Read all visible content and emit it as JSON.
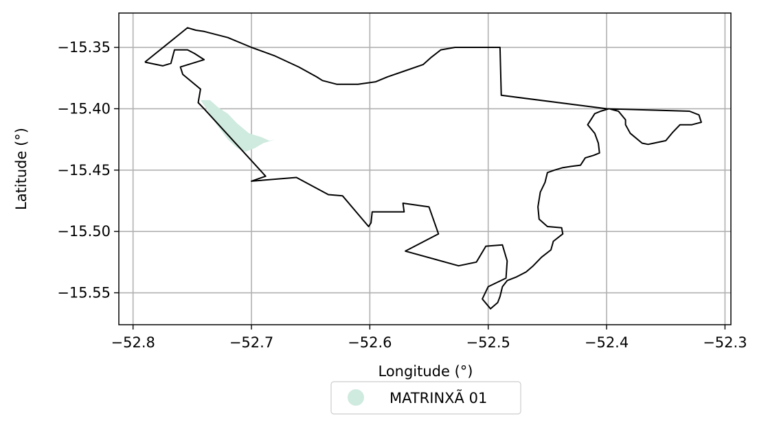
{
  "chart_data": {
    "type": "map",
    "xlabel": "Longitude (°)",
    "ylabel": "Latitude (°)",
    "xlim": [
      -52.812,
      -52.295
    ],
    "ylim": [
      -15.576,
      -15.322
    ],
    "xticks": [
      -52.8,
      -52.7,
      -52.6,
      -52.5,
      -52.4,
      -52.3
    ],
    "xtick_labels": [
      "−52.8",
      "−52.7",
      "−52.6",
      "−52.5",
      "−52.4",
      "−52.3"
    ],
    "yticks": [
      -15.35,
      -15.4,
      -15.45,
      -15.5,
      -15.55
    ],
    "ytick_labels": [
      "−15.35",
      "−15.40",
      "−15.45",
      "−15.50",
      "−15.55"
    ],
    "grid": true,
    "legend_position": "bottom-center, below plot",
    "series": [
      {
        "name": "MATRINXÃ 01",
        "color": "#cfeadf"
      }
    ],
    "boundary_color": "#000000",
    "boundary": [
      [
        -52.79,
        -15.362
      ],
      [
        -52.754,
        -15.334
      ],
      [
        -52.747,
        -15.336
      ],
      [
        -52.74,
        -15.337
      ],
      [
        -52.72,
        -15.342
      ],
      [
        -52.7,
        -15.35
      ],
      [
        -52.68,
        -15.357
      ],
      [
        -52.66,
        -15.366
      ],
      [
        -52.645,
        -15.374
      ],
      [
        -52.64,
        -15.377
      ],
      [
        -52.628,
        -15.38
      ],
      [
        -52.61,
        -15.38
      ],
      [
        -52.595,
        -15.378
      ],
      [
        -52.585,
        -15.374
      ],
      [
        -52.57,
        -15.369
      ],
      [
        -52.555,
        -15.364
      ],
      [
        -52.548,
        -15.358
      ],
      [
        -52.54,
        -15.352
      ],
      [
        -52.528,
        -15.35
      ],
      [
        -52.515,
        -15.35
      ],
      [
        -52.5,
        -15.35
      ],
      [
        -52.49,
        -15.35
      ],
      [
        -52.489,
        -15.389
      ],
      [
        -52.4,
        -15.4
      ],
      [
        -52.33,
        -15.402
      ],
      [
        -52.322,
        -15.405
      ],
      [
        -52.32,
        -15.411
      ],
      [
        -52.328,
        -15.413
      ],
      [
        -52.338,
        -15.413
      ],
      [
        -52.344,
        -15.419
      ],
      [
        -52.35,
        -15.426
      ],
      [
        -52.36,
        -15.428
      ],
      [
        -52.365,
        -15.429
      ],
      [
        -52.37,
        -15.428
      ],
      [
        -52.38,
        -15.42
      ],
      [
        -52.384,
        -15.413
      ],
      [
        -52.384,
        -15.409
      ],
      [
        -52.39,
        -15.402
      ],
      [
        -52.398,
        -15.4
      ],
      [
        -52.405,
        -15.402
      ],
      [
        -52.41,
        -15.404
      ],
      [
        -52.416,
        -15.413
      ],
      [
        -52.41,
        -15.42
      ],
      [
        -52.407,
        -15.428
      ],
      [
        -52.406,
        -15.436
      ],
      [
        -52.411,
        -15.438
      ],
      [
        -52.418,
        -15.44
      ],
      [
        -52.422,
        -15.446
      ],
      [
        -52.43,
        -15.447
      ],
      [
        -52.437,
        -15.448
      ],
      [
        -52.444,
        -15.45
      ],
      [
        -52.45,
        -15.452
      ],
      [
        -52.452,
        -15.46
      ],
      [
        -52.456,
        -15.468
      ],
      [
        -52.458,
        -15.48
      ],
      [
        -52.457,
        -15.49
      ],
      [
        -52.45,
        -15.496
      ],
      [
        -52.438,
        -15.497
      ],
      [
        -52.437,
        -15.502
      ],
      [
        -52.445,
        -15.508
      ],
      [
        -52.447,
        -15.515
      ],
      [
        -52.455,
        -15.521
      ],
      [
        -52.462,
        -15.528
      ],
      [
        -52.468,
        -15.533
      ],
      [
        -52.476,
        -15.537
      ],
      [
        -52.484,
        -15.54
      ],
      [
        -52.488,
        -15.545
      ],
      [
        -52.49,
        -15.553
      ],
      [
        -52.492,
        -15.558
      ],
      [
        -52.498,
        -15.563
      ],
      [
        -52.505,
        -15.555
      ],
      [
        -52.5,
        -15.545
      ],
      [
        -52.485,
        -15.538
      ],
      [
        -52.484,
        -15.524
      ],
      [
        -52.488,
        -15.511
      ],
      [
        -52.502,
        -15.512
      ],
      [
        -52.51,
        -15.525
      ],
      [
        -52.525,
        -15.528
      ],
      [
        -52.57,
        -15.516
      ],
      [
        -52.542,
        -15.502
      ],
      [
        -52.55,
        -15.48
      ],
      [
        -52.572,
        -15.477
      ],
      [
        -52.571,
        -15.484
      ],
      [
        -52.598,
        -15.484
      ],
      [
        -52.599,
        -15.493
      ],
      [
        -52.601,
        -15.496
      ],
      [
        -52.623,
        -15.471
      ],
      [
        -52.635,
        -15.47
      ],
      [
        -52.662,
        -15.456
      ],
      [
        -52.7,
        -15.459
      ],
      [
        -52.688,
        -15.455
      ],
      [
        -52.74,
        -15.4
      ],
      [
        -52.745,
        -15.395
      ],
      [
        -52.743,
        -15.384
      ],
      [
        -52.758,
        -15.372
      ],
      [
        -52.76,
        -15.366
      ],
      [
        -52.74,
        -15.36
      ],
      [
        -52.748,
        -15.355
      ],
      [
        -52.754,
        -15.352
      ],
      [
        -52.765,
        -15.352
      ],
      [
        -52.768,
        -15.363
      ],
      [
        -52.775,
        -15.365
      ],
      [
        -52.79,
        -15.362
      ]
    ],
    "features": [
      {
        "series": "MATRINXÃ 01",
        "polygon": [
          [
            -52.743,
            -15.393
          ],
          [
            -52.735,
            -15.393
          ],
          [
            -52.728,
            -15.399
          ],
          [
            -52.72,
            -15.404
          ],
          [
            -52.712,
            -15.412
          ],
          [
            -52.702,
            -15.42
          ],
          [
            -52.692,
            -15.423
          ],
          [
            -52.685,
            -15.426
          ],
          [
            -52.68,
            -15.425
          ],
          [
            -52.69,
            -15.428
          ],
          [
            -52.697,
            -15.432
          ],
          [
            -52.705,
            -15.435
          ],
          [
            -52.712,
            -15.432
          ],
          [
            -52.72,
            -15.425
          ],
          [
            -52.73,
            -15.412
          ],
          [
            -52.738,
            -15.4
          ]
        ]
      }
    ]
  }
}
